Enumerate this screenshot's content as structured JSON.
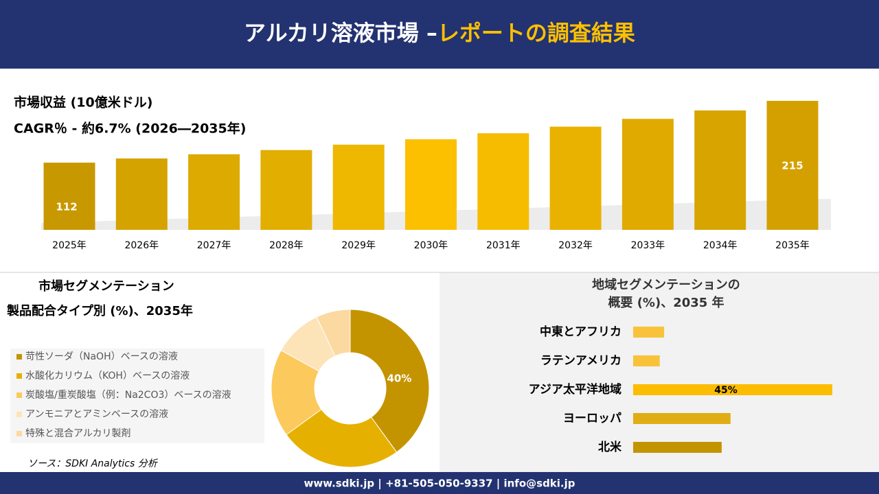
{
  "header": {
    "title": "アルカリ溶液市場 –",
    "title_highlight": "レポートの調査結果"
  },
  "footer": {
    "contact": "www.sdki.jp | +81-505-050-9337 | info@sdki.jp"
  },
  "source": "ソース：SDKI Analytics 分析",
  "chart_data": [
    {
      "type": "bar",
      "title": "市場収益 (10億米ドル)",
      "subtitle": "CAGR％ - 約6.7% (2026―2035年)",
      "categories": [
        "2025年",
        "2026年",
        "2027年",
        "2028年",
        "2029年",
        "2030年",
        "2031年",
        "2032年",
        "2033年",
        "2034年",
        "2035年"
      ],
      "values": [
        112,
        119,
        126,
        133,
        142,
        151,
        161,
        172,
        185,
        199,
        215
      ],
      "colors": [
        "#c89800",
        "#d4a300",
        "#dcaa00",
        "#e2ae00",
        "#eeb700",
        "#fcc000",
        "#f6bc00",
        "#eab200",
        "#e0aa00",
        "#d8a400",
        "#d4a000"
      ]
    },
    {
      "type": "donut",
      "title": "市場セグメンテーション",
      "subtitle": "製品配合タイプ別 (%)、2035年",
      "categories": [
        "苛性ソーダ（NaOH）ベースの溶液",
        "水酸化カリウム（KOH）ベースの溶液",
        "炭酸塩/重炭酸塩（例：Na2CO3）ベースの溶液",
        "アンモニアとアミンベースの溶液",
        "特殊と混合アルカリ製剤"
      ],
      "values": [
        40,
        25,
        18,
        10,
        7
      ],
      "value_labels": [
        "40%",
        null,
        null,
        null,
        null
      ],
      "colors": [
        "#c49400",
        "#e6b000",
        "#fcc95c",
        "#fde3b8",
        "#fcd9a0"
      ]
    },
    {
      "type": "barh",
      "title": "地域セグメンテーションの",
      "subtitle": "概要 (%)、2035 年",
      "categories": [
        "中東とアフリカ",
        "ラテンアメリカ",
        "アジア太平洋地域",
        "ヨーロッパ",
        "北米"
      ],
      "values": [
        7,
        6,
        45,
        22,
        20
      ],
      "value_labels": [
        null,
        null,
        "45%",
        null,
        null
      ],
      "colors": [
        "#f8c33a",
        "#f8c33a",
        "#fcbc00",
        "#e0ad15",
        "#c49400"
      ]
    }
  ]
}
